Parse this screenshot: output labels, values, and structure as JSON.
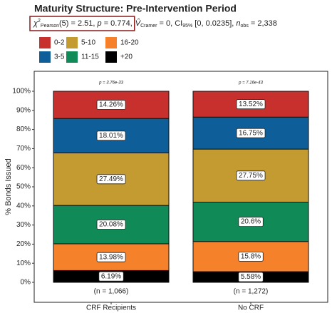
{
  "chart_data": {
    "type": "stacked_bar",
    "title": "Maturity Structure: Pre-Intervention Period",
    "subtitle_boxed": [
      {
        "text": "χ",
        "style": "italic"
      },
      {
        "text": "2",
        "style": "sup"
      },
      {
        "text": "Pearson",
        "style": "sub"
      },
      {
        "text": "(5) = 2.51, ",
        "style": "normal"
      },
      {
        "text": "p",
        "style": "italic"
      },
      {
        "text": " = 0.774,",
        "style": "normal"
      }
    ],
    "subtitle": [
      {
        "text": "V̂",
        "style": "italic"
      },
      {
        "text": "Cramer",
        "style": "sub"
      },
      {
        "text": " = 0, CI",
        "style": "normal"
      },
      {
        "text": "95%",
        "style": "sub"
      },
      {
        "text": " [0, 0.0235], ",
        "style": "normal"
      },
      {
        "text": "n",
        "style": "italic"
      },
      {
        "text": "obs",
        "style": "sub"
      },
      {
        "text": " = 2,338",
        "style": "normal"
      }
    ],
    "y_label": "% Bonds Issued",
    "categories": [
      "CRF Recipients",
      "No CRF"
    ],
    "p_labels": [
      "p = 3.76e-33",
      "p = 7.16e-43"
    ],
    "n_labels": [
      "(n = 1,066)",
      "(n = 1,272)"
    ],
    "series": [
      {
        "name": "0-2",
        "color": "#c8302d",
        "values": [
          14.26,
          13.52
        ],
        "value_labels": [
          "14.26%",
          "13.52%"
        ]
      },
      {
        "name": "3-5",
        "color": "#0e5f99",
        "values": [
          18.01,
          16.75
        ],
        "value_labels": [
          "18.01%",
          "16.75%"
        ]
      },
      {
        "name": "5-10",
        "color": "#c39b30",
        "values": [
          27.49,
          27.75
        ],
        "value_labels": [
          "27.49%",
          "27.75%"
        ]
      },
      {
        "name": "11-15",
        "color": "#108a56",
        "values": [
          20.08,
          20.6
        ],
        "value_labels": [
          "20.08%",
          "20.6%"
        ]
      },
      {
        "name": "16-20",
        "color": "#f5812b",
        "values": [
          13.98,
          15.8
        ],
        "value_labels": [
          "13.98%",
          "15.8%"
        ]
      },
      {
        "name": "+20",
        "color": "#000000",
        "values": [
          6.19,
          5.58
        ],
        "value_labels": [
          "6.19%",
          "5.58%"
        ]
      }
    ],
    "ylim": [
      0,
      100
    ],
    "yticks": [
      {
        "value": 0,
        "label": "0%"
      },
      {
        "value": 10,
        "label": "10%"
      },
      {
        "value": 20,
        "label": "20%"
      },
      {
        "value": 30,
        "label": "30%"
      },
      {
        "value": 40,
        "label": "40%"
      },
      {
        "value": 50,
        "label": "50%"
      },
      {
        "value": 60,
        "label": "60%"
      },
      {
        "value": 70,
        "label": "70%"
      },
      {
        "value": 80,
        "label": "80%"
      },
      {
        "value": 90,
        "label": "90%"
      },
      {
        "value": 100,
        "label": "100%"
      }
    ],
    "grid": false
  }
}
